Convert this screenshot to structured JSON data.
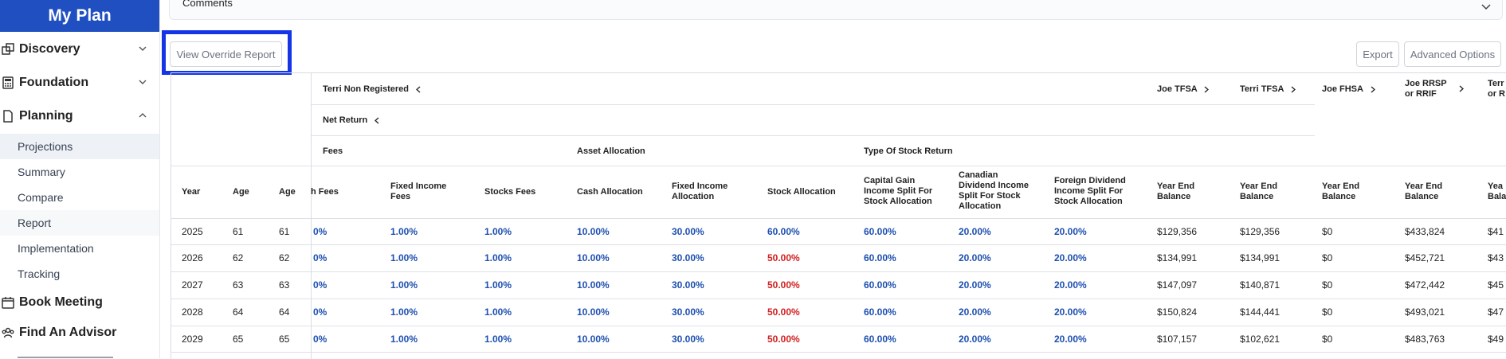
{
  "app": {
    "title": "My Plan"
  },
  "sidebar": {
    "sections": [
      {
        "label": "Discovery",
        "icon": "discovery-icon",
        "state": "collapsed"
      },
      {
        "label": "Foundation",
        "icon": "calculator-icon",
        "state": "collapsed"
      },
      {
        "label": "Planning",
        "icon": "document-icon",
        "state": "expanded"
      }
    ],
    "planning_items": [
      "Projections",
      "Summary",
      "Compare",
      "Report",
      "Implementation",
      "Tracking"
    ],
    "extra_items": [
      {
        "label": "Book Meeting",
        "icon": "calendar-icon"
      },
      {
        "label": "Find An Advisor",
        "icon": "people-icon"
      }
    ]
  },
  "comments": {
    "label": "Comments"
  },
  "toolbar": {
    "view_override": "View Override Report",
    "export": "Export",
    "advanced_options": "Advanced Options"
  },
  "table": {
    "group_headers": {
      "terri_non_registered": "Terri Non Registered",
      "net_return": "Net Return",
      "fees": "Fees",
      "asset_allocation": "Asset Allocation",
      "type_of_stock_return": "Type Of Stock Return",
      "joe_tfsa": "Joe TFSA",
      "terri_tfsa": "Terri TFSA",
      "joe_fhsa": "Joe FHSA",
      "joe_rrsp_line1": "Joe RRSP",
      "joe_rrsp_line2": "or RRIF",
      "terri_rrsp_line1": "Terr",
      "terri_rrsp_line2": "or R"
    },
    "columns": {
      "year": "Year",
      "age1": "Age",
      "age2": "Age",
      "cash_fees": "h Fees",
      "fixed_income_fees_1": "Fixed Income",
      "fixed_income_fees_2": "Fees",
      "stocks_fees": "Stocks Fees",
      "cash_allocation": "Cash Allocation",
      "fixed_income_alloc_1": "Fixed Income",
      "fixed_income_alloc_2": "Allocation",
      "stock_allocation": "Stock Allocation",
      "capital_gain_1": "Capital Gain",
      "capital_gain_2": "Income Split For",
      "capital_gain_3": "Stock Allocation",
      "canadian_div_1": "Canadian",
      "canadian_div_2": "Dividend Income",
      "canadian_div_3": "Split For Stock",
      "canadian_div_4": "Allocation",
      "foreign_div_1": "Foreign Dividend",
      "foreign_div_2": "Income Split For",
      "foreign_div_3": "Stock Allocation",
      "yeb_1": "Year End",
      "yeb_2": "Balance",
      "yeb_partial_1": "Yea",
      "yeb_partial_2": "Bala"
    },
    "rows": [
      {
        "year": "2025",
        "age1": "61",
        "age2": "61",
        "cash_fees": "0%",
        "fi_fees": "1.00%",
        "stock_fees": "1.00%",
        "cash_alloc": "10.00%",
        "fi_alloc": "30.00%",
        "stock_alloc": "60.00%",
        "stock_alloc_color": "blue",
        "cap_gain": "60.00%",
        "can_div": "20.00%",
        "for_div": "20.00%",
        "joe_tfsa": "$129,356",
        "terri_tfsa": "$129,356",
        "joe_fhsa": "$0",
        "joe_rrsp": "$433,824",
        "terri_rrsp": "$41"
      },
      {
        "year": "2026",
        "age1": "62",
        "age2": "62",
        "cash_fees": "0%",
        "fi_fees": "1.00%",
        "stock_fees": "1.00%",
        "cash_alloc": "10.00%",
        "fi_alloc": "30.00%",
        "stock_alloc": "50.00%",
        "stock_alloc_color": "red",
        "cap_gain": "60.00%",
        "can_div": "20.00%",
        "for_div": "20.00%",
        "joe_tfsa": "$134,991",
        "terri_tfsa": "$134,991",
        "joe_fhsa": "$0",
        "joe_rrsp": "$452,721",
        "terri_rrsp": "$43"
      },
      {
        "year": "2027",
        "age1": "63",
        "age2": "63",
        "cash_fees": "0%",
        "fi_fees": "1.00%",
        "stock_fees": "1.00%",
        "cash_alloc": "10.00%",
        "fi_alloc": "30.00%",
        "stock_alloc": "50.00%",
        "stock_alloc_color": "red",
        "cap_gain": "60.00%",
        "can_div": "20.00%",
        "for_div": "20.00%",
        "joe_tfsa": "$147,097",
        "terri_tfsa": "$140,871",
        "joe_fhsa": "$0",
        "joe_rrsp": "$472,442",
        "terri_rrsp": "$45"
      },
      {
        "year": "2028",
        "age1": "64",
        "age2": "64",
        "cash_fees": "0%",
        "fi_fees": "1.00%",
        "stock_fees": "1.00%",
        "cash_alloc": "10.00%",
        "fi_alloc": "30.00%",
        "stock_alloc": "50.00%",
        "stock_alloc_color": "red",
        "cap_gain": "60.00%",
        "can_div": "20.00%",
        "for_div": "20.00%",
        "joe_tfsa": "$150,824",
        "terri_tfsa": "$144,441",
        "joe_fhsa": "$0",
        "joe_rrsp": "$493,021",
        "terri_rrsp": "$47"
      },
      {
        "year": "2029",
        "age1": "65",
        "age2": "65",
        "cash_fees": "0%",
        "fi_fees": "1.00%",
        "stock_fees": "1.00%",
        "cash_alloc": "10.00%",
        "fi_alloc": "30.00%",
        "stock_alloc": "50.00%",
        "stock_alloc_color": "red",
        "cap_gain": "60.00%",
        "can_div": "20.00%",
        "for_div": "20.00%",
        "joe_tfsa": "$107,157",
        "terri_tfsa": "$102,621",
        "joe_fhsa": "$0",
        "joe_rrsp": "$483,763",
        "terri_rrsp": "$49"
      }
    ]
  },
  "colors": {
    "brand": "#1f4fc1",
    "highlight": "#1434e6",
    "value_blue": "#1d4fb0",
    "value_red": "#d21f1f"
  }
}
